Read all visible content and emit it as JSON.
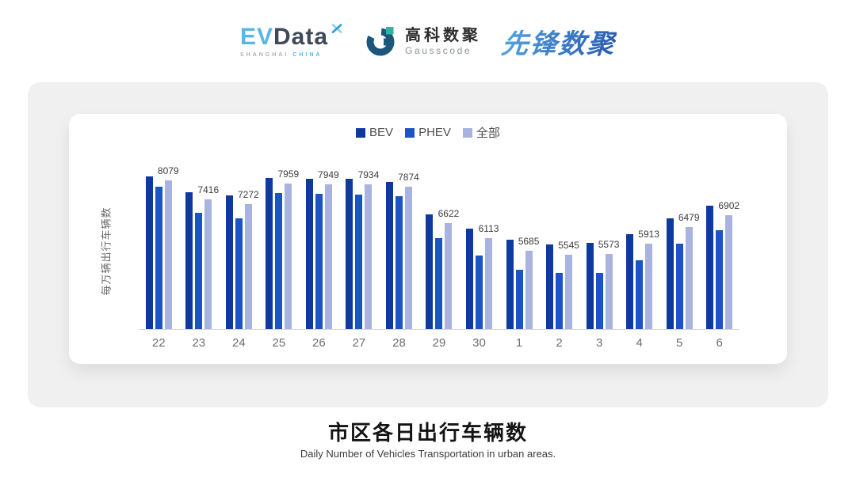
{
  "header": {
    "logos": {
      "evdata": {
        "ev": "EV",
        "data": "Data",
        "sub_left": "SHANGHAI",
        "sub_right": "CHINA"
      },
      "gausscode": {
        "cn": "高科数聚",
        "en": "Gausscode"
      },
      "xianfeng": {
        "text": "先锋数聚"
      }
    }
  },
  "chart_data": {
    "type": "bar",
    "title": "市区各日出行车辆数",
    "subtitle": "Daily Number of Vehicles Transportation in urban areas.",
    "ylabel": "每万辆出行车辆数",
    "xlabel": "",
    "categories": [
      "22",
      "23",
      "24",
      "25",
      "26",
      "27",
      "28",
      "29",
      "30",
      "1",
      "2",
      "3",
      "4",
      "5",
      "6"
    ],
    "series": [
      {
        "name": "BEV",
        "color": "#0E3A9E",
        "estimated": true,
        "values": [
          8210,
          7670,
          7560,
          8150,
          8130,
          8140,
          8030,
          6910,
          6430,
          6040,
          5890,
          5940,
          6230,
          6790,
          7210
        ]
      },
      {
        "name": "PHEV",
        "color": "#1B54C5",
        "estimated": true,
        "values": [
          7850,
          6970,
          6770,
          7640,
          7620,
          7580,
          7540,
          6100,
          5520,
          5020,
          4920,
          4920,
          5350,
          5920,
          6380
        ]
      },
      {
        "name": "全部",
        "color": "#A9B3DF",
        "estimated": false,
        "value_labels_shown": true,
        "values": [
          8079,
          7416,
          7272,
          7959,
          7949,
          7934,
          7874,
          6622,
          6113,
          5685,
          5545,
          5573,
          5913,
          6479,
          6902
        ]
      }
    ],
    "ylim": [
      3000,
      8400
    ],
    "grid": false,
    "legend_position": "top-center",
    "legend_entries": [
      "BEV",
      "PHEV",
      "全部"
    ]
  }
}
